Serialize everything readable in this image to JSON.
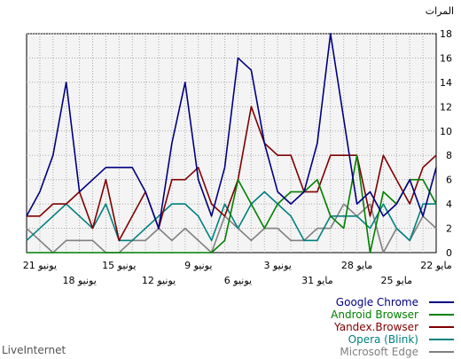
{
  "chart_data": {
    "type": "line",
    "title": "المرات",
    "ylim": [
      0,
      18
    ],
    "yticks": [
      0,
      2,
      4,
      6,
      8,
      10,
      12,
      14,
      16,
      18
    ],
    "grid": true,
    "legend_position": "bottom-right",
    "x_tick_labels_row1": [
      "22 مايو",
      "28 مايو",
      "3 يونيو",
      "9 يونيو",
      "15 يونيو",
      "21 يونيو"
    ],
    "x_tick_labels_row2": [
      "25 مايو",
      "31 مايو",
      "6 يونيو",
      "12 يونيو",
      "18 يونيو"
    ],
    "series": [
      {
        "name": "Google Chrome",
        "color": "#000080",
        "values": [
          7,
          3,
          6,
          4,
          3,
          5,
          4,
          11,
          18,
          9,
          5,
          4,
          5,
          9,
          15,
          16,
          7,
          3,
          6,
          14,
          9,
          2,
          5,
          7,
          7,
          7,
          6,
          5,
          14,
          8,
          5,
          3
        ]
      },
      {
        "name": "Android Browser",
        "color": "#008000",
        "values": [
          4,
          6,
          6,
          4,
          5,
          0,
          8,
          2,
          3,
          6,
          5,
          5,
          4,
          2,
          4,
          6,
          1,
          0,
          0,
          0,
          0,
          0,
          0,
          0,
          0,
          0,
          0,
          0,
          0,
          0,
          0,
          0
        ]
      },
      {
        "name": "Yandex.Browser",
        "color": "#800000",
        "values": [
          8,
          7,
          4,
          6,
          8,
          3,
          8,
          8,
          8,
          5,
          5,
          8,
          8,
          9,
          12,
          6,
          3,
          4,
          7,
          6,
          6,
          2,
          5,
          3,
          1,
          6,
          2,
          5,
          4,
          4,
          3,
          3
        ]
      },
      {
        "name": "Opera (Blink)",
        "color": "#008080",
        "values": [
          4,
          4,
          1,
          2,
          4,
          2,
          3,
          3,
          3,
          1,
          1,
          3,
          4,
          5,
          4,
          2,
          4,
          1,
          3,
          4,
          4,
          3,
          2,
          1,
          1,
          4,
          2,
          3,
          4,
          3,
          2,
          1
        ]
      },
      {
        "name": "Microsoft Edge",
        "color": "#808080",
        "values": [
          2,
          3,
          1,
          2,
          0,
          4,
          3,
          4,
          2,
          2,
          1,
          1,
          2,
          2,
          1,
          2,
          3,
          0,
          1,
          2,
          1,
          2,
          1,
          1,
          0,
          0,
          1,
          1,
          1,
          0,
          1,
          2
        ]
      }
    ]
  },
  "footer": {
    "brand": "LiveInternet"
  }
}
